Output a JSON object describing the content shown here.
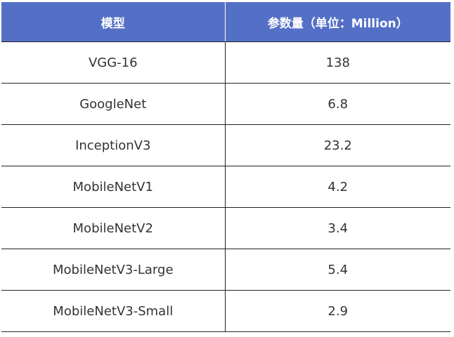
{
  "table": {
    "headers": [
      "模型",
      "参数量（单位：Million）"
    ],
    "rows": [
      {
        "model": "VGG-16",
        "params": "138"
      },
      {
        "model": "GoogleNet",
        "params": "6.8"
      },
      {
        "model": "InceptionV3",
        "params": "23.2"
      },
      {
        "model": "MobileNetV1",
        "params": "4.2"
      },
      {
        "model": "MobileNetV2",
        "params": "3.4"
      },
      {
        "model": "MobileNetV3-Large",
        "params": "5.4"
      },
      {
        "model": "MobileNetV3-Small",
        "params": "2.9"
      }
    ],
    "header_bg_color": "#5470c6"
  }
}
